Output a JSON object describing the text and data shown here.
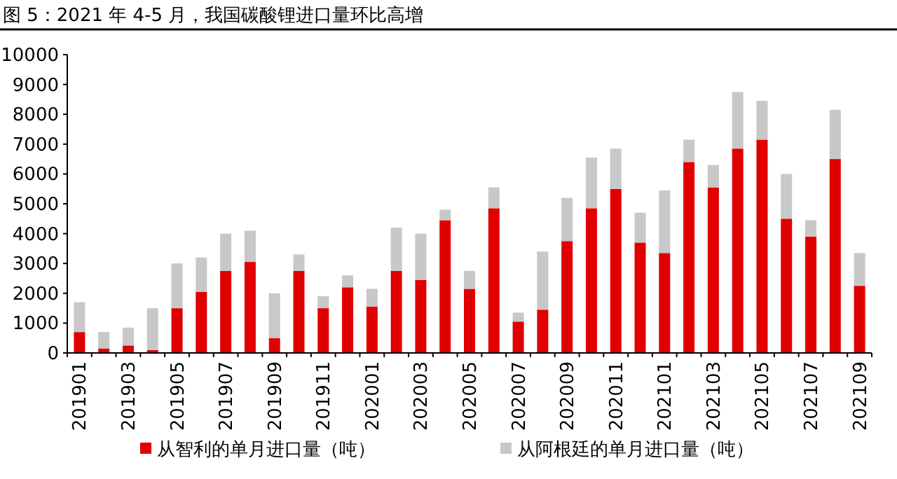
{
  "chart_data": {
    "type": "bar",
    "stacked": true,
    "title": "图 5：2021 年 4-5 月，我国碳酸锂进口量环比高增",
    "categories": [
      "201901",
      null,
      "201903",
      null,
      "201905",
      null,
      "201907",
      null,
      "201909",
      null,
      "201911",
      null,
      "202001",
      null,
      "202003",
      null,
      "202005",
      null,
      "202007",
      null,
      "202009",
      null,
      "202011",
      null,
      "202101",
      null,
      "202103",
      null,
      "202105",
      null,
      "202107",
      null,
      "202109"
    ],
    "series": [
      {
        "name": "从智利的单月进口量（吨）",
        "color": "#e00000",
        "values": [
          700,
          150,
          250,
          100,
          1500,
          2050,
          2750,
          3050,
          500,
          2750,
          1500,
          2200,
          1550,
          2750,
          2450,
          4450,
          2150,
          4850,
          1050,
          1450,
          3750,
          4850,
          5500,
          3700,
          3350,
          6400,
          5550,
          6850,
          7150,
          4500,
          3900,
          6500,
          2250
        ]
      },
      {
        "name": "从阿根廷的单月进口量（吨）",
        "color": "#c8c8c8",
        "values": [
          1000,
          550,
          600,
          1400,
          1500,
          1150,
          1250,
          1050,
          1500,
          550,
          400,
          400,
          600,
          1450,
          1550,
          350,
          600,
          700,
          300,
          1950,
          1450,
          1700,
          1350,
          1000,
          2100,
          750,
          750,
          1900,
          1300,
          1500,
          550,
          1650,
          1100
        ]
      }
    ],
    "ylim": [
      0,
      10000
    ],
    "yticks": [
      0,
      1000,
      2000,
      3000,
      4000,
      5000,
      6000,
      7000,
      8000,
      9000,
      10000
    ],
    "legend": "bottom",
    "grid": false
  }
}
